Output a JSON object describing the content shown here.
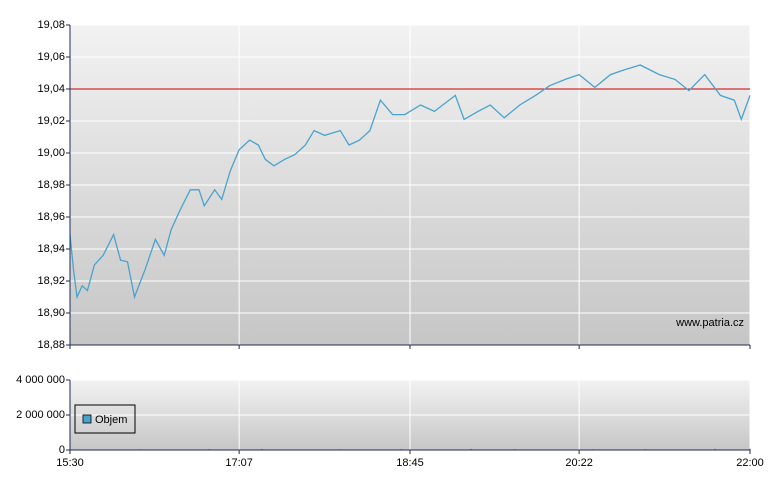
{
  "chart_data": [
    {
      "type": "line",
      "x": [
        "15:30",
        "15:32",
        "15:34",
        "15:37",
        "15:40",
        "15:44",
        "15:49",
        "15:55",
        "15:59",
        "16:03",
        "16:07",
        "16:13",
        "16:19",
        "16:24",
        "16:28",
        "16:33",
        "16:39",
        "16:44",
        "16:47",
        "16:53",
        "16:57",
        "17:02",
        "17:07",
        "17:13",
        "17:18",
        "17:22",
        "17:27",
        "17:33",
        "17:39",
        "17:45",
        "17:50",
        "17:56",
        "18:05",
        "18:10",
        "18:16",
        "18:22",
        "18:28",
        "18:35",
        "18:42",
        "18:51",
        "18:59",
        "19:11",
        "19:16",
        "19:24",
        "19:31",
        "19:39",
        "19:48",
        "19:57",
        "20:05",
        "20:14",
        "20:22",
        "20:31",
        "20:40",
        "20:48",
        "20:57",
        "21:08",
        "21:17",
        "21:25",
        "21:34",
        "21:43",
        "21:51",
        "21:55",
        "22:00"
      ],
      "series": [
        {
          "color": "#4aa3cc",
          "values": [
            18.949,
            18.927,
            18.91,
            18.917,
            18.914,
            18.93,
            18.936,
            18.949,
            18.933,
            18.932,
            18.91,
            18.927,
            18.946,
            18.936,
            18.952,
            18.964,
            18.977,
            18.977,
            18.967,
            18.977,
            18.971,
            18.989,
            19.002,
            19.008,
            19.005,
            18.996,
            18.992,
            18.996,
            18.999,
            19.005,
            19.014,
            19.011,
            19.014,
            19.005,
            19.008,
            19.014,
            19.033,
            19.024,
            19.024,
            19.03,
            19.026,
            19.036,
            19.021,
            19.026,
            19.03,
            19.022,
            19.03,
            19.036,
            19.042,
            19.046,
            19.049,
            19.041,
            19.049,
            19.052,
            19.055,
            19.049,
            19.046,
            19.039,
            19.049,
            19.036,
            19.033,
            19.021,
            19.036
          ]
        }
      ],
      "reference_line": {
        "value": 19.04,
        "color": "#cc0000"
      },
      "xlim": [
        "15:30",
        "22:00"
      ],
      "xticks": [
        "15:30",
        "17:07",
        "18:45",
        "20:22",
        "22:00"
      ],
      "ylim": [
        18.88,
        19.08
      ],
      "yticks": [
        {
          "value": 18.88,
          "label": "18,88"
        },
        {
          "value": 18.9,
          "label": "18,90"
        },
        {
          "value": 18.92,
          "label": "18,92"
        },
        {
          "value": 18.94,
          "label": "18,94"
        },
        {
          "value": 18.96,
          "label": "18,96"
        },
        {
          "value": 18.98,
          "label": "18,98"
        },
        {
          "value": 19.0,
          "label": "19,00"
        },
        {
          "value": 19.02,
          "label": "19,02"
        },
        {
          "value": 19.04,
          "label": "19,04"
        },
        {
          "value": 19.06,
          "label": "19,06"
        },
        {
          "value": 19.08,
          "label": "19,08"
        }
      ],
      "grid": true,
      "watermark": "www.patria.cz"
    },
    {
      "type": "bar",
      "x": [
        "15:34",
        "16:10",
        "16:50",
        "17:20",
        "18:05",
        "18:40",
        "19:20",
        "19:45",
        "20:30",
        "21:00",
        "21:40",
        "22:00"
      ],
      "series": [
        {
          "name": "Objem",
          "color": "#4aa3cc",
          "values": [
            30000,
            40000,
            50000,
            60000,
            40000,
            50000,
            60000,
            50000,
            40000,
            50000,
            60000,
            70000
          ]
        }
      ],
      "xlim": [
        "15:30",
        "22:00"
      ],
      "xticks": [
        "15:30",
        "17:07",
        "18:45",
        "20:22",
        "22:00"
      ],
      "ylim": [
        0,
        4000000
      ],
      "yticks": [
        {
          "value": 0,
          "label": "0"
        },
        {
          "value": 2000000,
          "label": "2 000 000"
        },
        {
          "value": 4000000,
          "label": "4 000 000"
        }
      ],
      "grid": true,
      "legend": "bottom-left"
    }
  ]
}
